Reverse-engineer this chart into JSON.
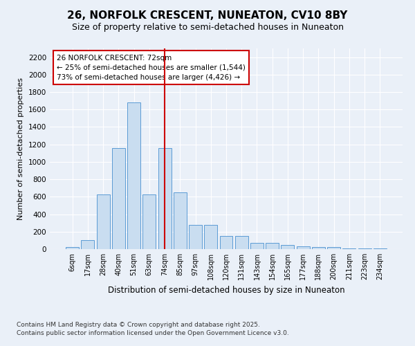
{
  "title": "26, NORFOLK CRESCENT, NUNEATON, CV10 8BY",
  "subtitle": "Size of property relative to semi-detached houses in Nuneaton",
  "xlabel": "Distribution of semi-detached houses by size in Nuneaton",
  "ylabel": "Number of semi-detached properties",
  "bar_color": "#c9ddf0",
  "bar_edge_color": "#5b9bd5",
  "annotation_box_text": "26 NORFOLK CRESCENT: 72sqm\n← 25% of semi-detached houses are smaller (1,544)\n73% of semi-detached houses are larger (4,426) →",
  "annotation_box_color": "#cc0000",
  "vline_color": "#cc0000",
  "footer_line1": "Contains HM Land Registry data © Crown copyright and database right 2025.",
  "footer_line2": "Contains public sector information licensed under the Open Government Licence v3.0.",
  "categories": [
    "6sqm",
    "17sqm",
    "28sqm",
    "40sqm",
    "51sqm",
    "63sqm",
    "74sqm",
    "85sqm",
    "97sqm",
    "108sqm",
    "120sqm",
    "131sqm",
    "143sqm",
    "154sqm",
    "165sqm",
    "177sqm",
    "188sqm",
    "200sqm",
    "211sqm",
    "223sqm",
    "234sqm"
  ],
  "values": [
    20,
    100,
    630,
    1160,
    1680,
    630,
    1160,
    650,
    280,
    280,
    150,
    150,
    75,
    75,
    50,
    35,
    20,
    20,
    10,
    10,
    10
  ],
  "ylim": [
    0,
    2300
  ],
  "yticks": [
    0,
    200,
    400,
    600,
    800,
    1000,
    1200,
    1400,
    1600,
    1800,
    2000,
    2200
  ],
  "background_color": "#eaf0f8",
  "plot_bg_color": "#eaf0f8",
  "title_fontsize": 11,
  "subtitle_fontsize": 9,
  "annotation_fontsize": 7.5,
  "footer_fontsize": 6.5,
  "vline_idx": 6
}
